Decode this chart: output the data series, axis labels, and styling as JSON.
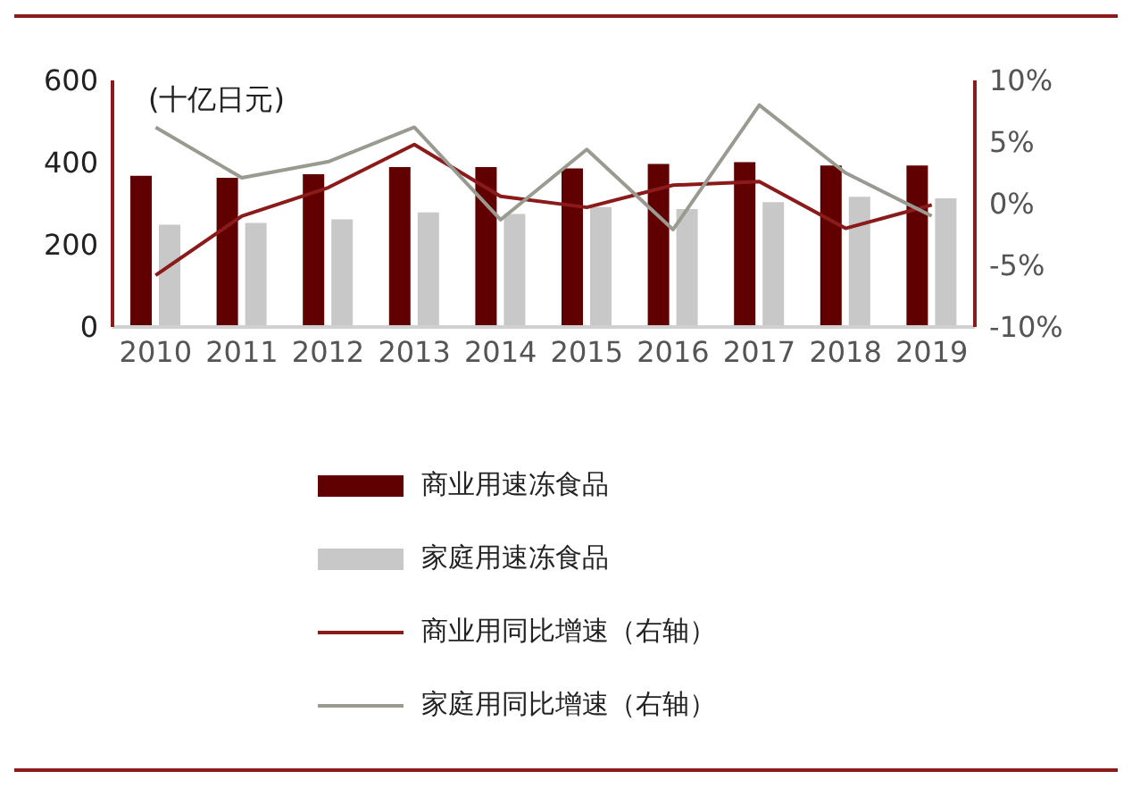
{
  "chart_data": {
    "type": "bar",
    "categories": [
      "2010",
      "2011",
      "2012",
      "2013",
      "2014",
      "2015",
      "2016",
      "2017",
      "2018",
      "2019"
    ],
    "series": [
      {
        "name": "商业用速冻食品",
        "color": "#600000",
        "values": [
          368,
          363,
          372,
          389,
          389,
          386,
          397,
          401,
          393,
          393
        ]
      },
      {
        "name": "家庭用速冻食品",
        "color": "#c8c8c8",
        "values": [
          249,
          253,
          262,
          279,
          275,
          292,
          287,
          304,
          317,
          313
        ]
      },
      {
        "name": "商业用同比增速（右轴）",
        "type": "line",
        "axis": "y2",
        "color": "#8b1a1a",
        "values": [
          -5.8,
          -1.0,
          1.3,
          4.8,
          0.6,
          -0.3,
          1.5,
          1.8,
          -2.0,
          -0.1
        ]
      },
      {
        "name": "家庭用同比增速（右轴）",
        "type": "line",
        "axis": "y2",
        "color": "#9a9a90",
        "values": [
          6.2,
          2.1,
          3.4,
          6.2,
          -1.3,
          4.4,
          -2.1,
          8.0,
          2.5,
          -1.0
        ]
      }
    ],
    "ylim": [
      0,
      600
    ],
    "yticks": [
      0,
      200,
      400,
      600
    ],
    "y2lim": [
      -10,
      10
    ],
    "y2ticks": [
      {
        "value": -10,
        "label": "-10%"
      },
      {
        "value": -5,
        "label": "-5%"
      },
      {
        "value": 0,
        "label": "0%"
      },
      {
        "value": 5,
        "label": "5%"
      },
      {
        "value": 10,
        "label": "10%"
      }
    ],
    "annotations": [
      "(十亿日元)"
    ],
    "legend": "bottom",
    "grid": false,
    "marker": "none"
  }
}
